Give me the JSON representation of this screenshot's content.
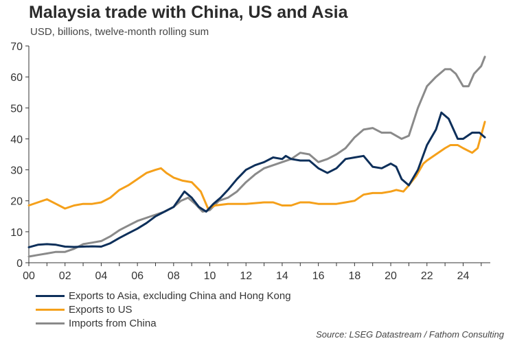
{
  "chart_data": {
    "type": "line",
    "title": "Malaysia trade with China, US and Asia",
    "subtitle": "USD, billions, twelve-month rolling sum",
    "source": "Source: LSEG Datastream / Fathom Consulting",
    "xlim": [
      2000,
      2025.5
    ],
    "ylim": [
      0,
      70
    ],
    "x_ticks": [
      2000,
      2002,
      2004,
      2006,
      2008,
      2010,
      2012,
      2014,
      2016,
      2018,
      2020,
      2022,
      2024
    ],
    "x_tick_labels": [
      "00",
      "02",
      "04",
      "06",
      "08",
      "10",
      "12",
      "14",
      "16",
      "18",
      "20",
      "22",
      "24"
    ],
    "y_ticks": [
      0,
      10,
      20,
      30,
      40,
      50,
      60,
      70
    ],
    "y_tick_labels": [
      "0",
      "10",
      "20",
      "30",
      "40",
      "50",
      "60",
      "70"
    ],
    "grid": false,
    "legend_position": "bottom-left",
    "series": [
      {
        "name": "Exports to Asia, excluding China and Hong Kong",
        "color": "#0d2f5a",
        "x": [
          2000.0,
          2000.5,
          2001.0,
          2001.5,
          2002.0,
          2002.5,
          2003.0,
          2003.5,
          2004.0,
          2004.5,
          2005.0,
          2005.5,
          2006.0,
          2006.5,
          2007.0,
          2007.5,
          2008.0,
          2008.3,
          2008.6,
          2009.0,
          2009.4,
          2009.8,
          2010.2,
          2010.6,
          2011.0,
          2011.5,
          2012.0,
          2012.5,
          2013.0,
          2013.5,
          2014.0,
          2014.2,
          2014.5,
          2015.0,
          2015.5,
          2016.0,
          2016.5,
          2017.0,
          2017.5,
          2018.0,
          2018.5,
          2019.0,
          2019.5,
          2020.0,
          2020.3,
          2020.6,
          2021.0,
          2021.5,
          2022.0,
          2022.5,
          2022.8,
          2023.2,
          2023.7,
          2024.0,
          2024.5,
          2024.9,
          2025.2
        ],
        "values": [
          5,
          5.8,
          6,
          5.8,
          5.2,
          5.1,
          5.2,
          5.3,
          5.2,
          6.3,
          8,
          9.5,
          11,
          12.8,
          15,
          16.5,
          18,
          20.5,
          23,
          21,
          18,
          16.5,
          19,
          21,
          23.5,
          27,
          30,
          31.5,
          32.5,
          34,
          33.5,
          34.5,
          33.5,
          33,
          33,
          30.5,
          29,
          30.5,
          33.5,
          34,
          34.5,
          31,
          30.5,
          32,
          31,
          27,
          25,
          30,
          38,
          43,
          48.5,
          46.5,
          40,
          40,
          42,
          42,
          40.5
        ]
      },
      {
        "name": "Exports to US",
        "color": "#f5a01a",
        "x": [
          2000.0,
          2000.5,
          2001.0,
          2001.5,
          2002.0,
          2002.5,
          2003.0,
          2003.5,
          2004.0,
          2004.5,
          2005.0,
          2005.5,
          2006.0,
          2006.5,
          2007.0,
          2007.3,
          2007.6,
          2008.0,
          2008.5,
          2009.0,
          2009.5,
          2009.9,
          2010.3,
          2011.0,
          2012.0,
          2013.0,
          2013.5,
          2014.0,
          2014.5,
          2015.0,
          2015.5,
          2016.0,
          2016.5,
          2017.0,
          2017.5,
          2018.0,
          2018.5,
          2019.0,
          2019.5,
          2020.0,
          2020.3,
          2020.7,
          2021.0,
          2021.4,
          2021.8,
          2022.0,
          2022.5,
          2023.0,
          2023.3,
          2023.7,
          2024.0,
          2024.5,
          2024.8,
          2025.2
        ],
        "values": [
          18.5,
          19.5,
          20.5,
          19,
          17.5,
          18.5,
          19,
          19,
          19.5,
          21,
          23.5,
          25,
          27,
          29,
          30,
          30.5,
          29,
          27.5,
          26.5,
          26,
          23,
          17.5,
          18.5,
          19,
          19,
          19.5,
          19.5,
          18.5,
          18.5,
          19.5,
          19.5,
          19,
          19,
          19,
          19.5,
          20,
          22,
          22.5,
          22.5,
          23,
          23.5,
          23,
          25,
          28,
          32,
          33,
          35,
          37,
          38,
          38,
          37,
          35.5,
          37,
          45.5
        ]
      },
      {
        "name": "Imports from China",
        "color": "#8a8a8a",
        "x": [
          2000.0,
          2000.5,
          2001.0,
          2001.5,
          2002.0,
          2002.5,
          2003.0,
          2003.5,
          2004.0,
          2004.5,
          2005.0,
          2005.5,
          2006.0,
          2006.5,
          2007.0,
          2007.5,
          2008.0,
          2008.4,
          2008.8,
          2009.2,
          2009.6,
          2010.0,
          2010.5,
          2011.0,
          2011.5,
          2012.0,
          2012.5,
          2013.0,
          2013.5,
          2014.0,
          2014.5,
          2015.0,
          2015.5,
          2016.0,
          2016.5,
          2017.0,
          2017.5,
          2018.0,
          2018.5,
          2019.0,
          2019.5,
          2020.0,
          2020.3,
          2020.6,
          2021.0,
          2021.5,
          2022.0,
          2022.5,
          2023.0,
          2023.3,
          2023.6,
          2024.0,
          2024.3,
          2024.6,
          2025.0,
          2025.2
        ],
        "values": [
          2,
          2.5,
          3,
          3.5,
          3.5,
          4.5,
          6,
          6.5,
          7,
          8.5,
          10.5,
          12,
          13.5,
          14.5,
          15.5,
          16.5,
          18,
          20,
          21,
          19,
          16.5,
          17,
          20,
          21,
          23,
          26,
          28.5,
          30.5,
          31.5,
          32.5,
          33.5,
          35.5,
          35,
          32.5,
          33.5,
          35,
          37,
          40.5,
          43,
          43.5,
          42,
          42,
          41,
          40,
          41,
          50,
          57,
          60,
          62.5,
          62.5,
          61,
          57,
          57,
          61,
          63.5,
          66.5
        ]
      }
    ]
  }
}
